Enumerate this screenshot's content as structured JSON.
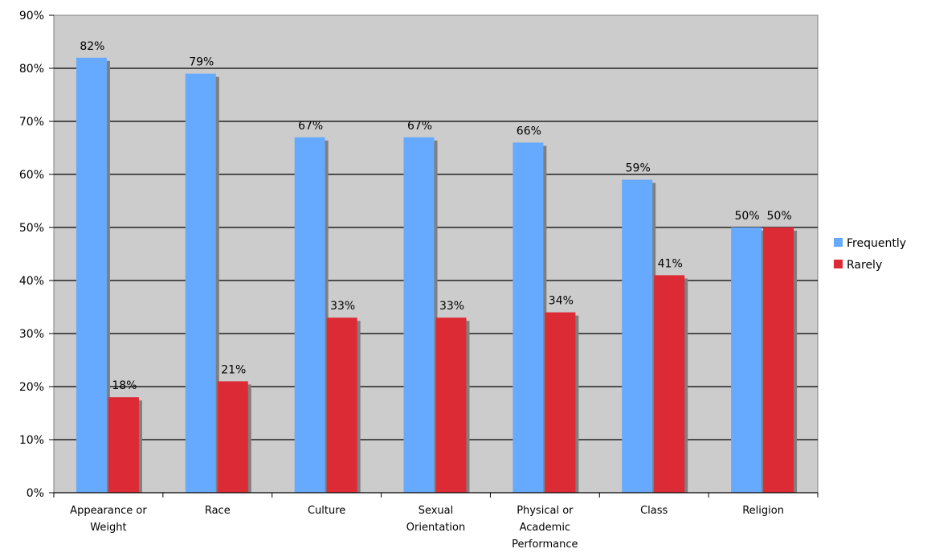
{
  "chart_data": {
    "type": "bar",
    "categories": [
      [
        "Appearance or",
        "Weight"
      ],
      [
        "Race"
      ],
      [
        "Culture"
      ],
      [
        "Sexual",
        "Orientation"
      ],
      [
        "Physical or",
        "Academic",
        "Performance"
      ],
      [
        "Class"
      ],
      [
        "Religion"
      ]
    ],
    "series": [
      {
        "name": "Frequently",
        "color": "#66aaff",
        "values": [
          82,
          79,
          67,
          67,
          66,
          59,
          50
        ],
        "labels": [
          "82%",
          "79%",
          "67%",
          "67%",
          "66%",
          "59%",
          "50%"
        ]
      },
      {
        "name": "Rarely",
        "color": "#dd2b35",
        "values": [
          18,
          21,
          33,
          33,
          34,
          41,
          50
        ],
        "labels": [
          "18%",
          "21%",
          "33%",
          "33%",
          "34%",
          "41%",
          "50%"
        ]
      }
    ],
    "ylim": [
      0,
      90
    ],
    "yticks": [
      "0%",
      "10%",
      "20%",
      "30%",
      "40%",
      "50%",
      "60%",
      "70%",
      "80%",
      "90%"
    ],
    "plot_background": "#cccccc",
    "shadow_color": "#7f7f7f",
    "grid": true,
    "legend_position": "right"
  }
}
